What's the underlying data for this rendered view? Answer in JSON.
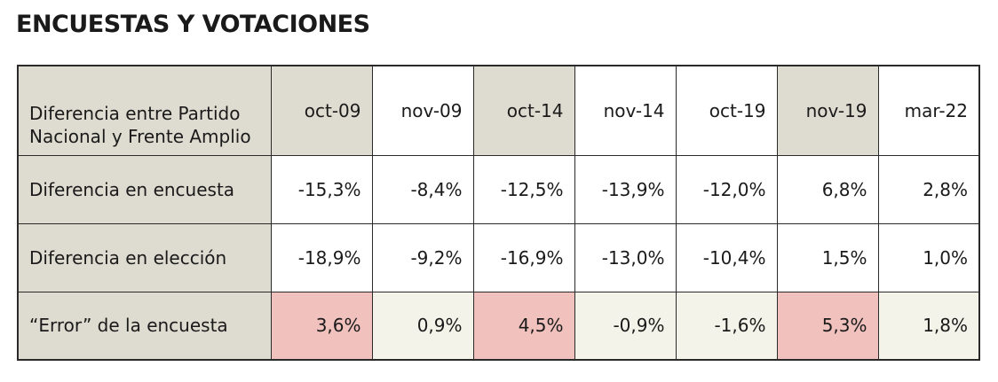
{
  "title": "ENCUESTAS Y VOTACIONES",
  "colors": {
    "label_bg": "#dedcd0",
    "high_error_bg": "#f0c1bd",
    "low_error_bg": "#f4f3e9",
    "border": "#2a2a2a"
  },
  "table": {
    "corner_label": "Diferencia entre Partido Nacional y Frente Amplio",
    "periods": [
      "oct-09",
      "nov-09",
      "oct-14",
      "nov-14",
      "oct-19",
      "nov-19",
      "mar-22"
    ],
    "rows": [
      {
        "label": "Diferencia en encuesta",
        "values": [
          "-15,3%",
          "-8,4%",
          "-12,5%",
          "-13,9%",
          "-12,0%",
          "6,8%",
          "2,8%"
        ]
      },
      {
        "label": "Diferencia en elección",
        "values": [
          "-18,9%",
          "-9,2%",
          "-16,9%",
          "-13,0%",
          "-10,4%",
          "1,5%",
          "1,0%"
        ]
      },
      {
        "label": "“Error” de la encuesta",
        "values": [
          "3,6%",
          "0,9%",
          "4,5%",
          "-0,9%",
          "-1,6%",
          "5,3%",
          "1,8%"
        ],
        "highlight": [
          "high",
          "low",
          "high",
          "low",
          "low",
          "high",
          "low"
        ]
      }
    ]
  }
}
